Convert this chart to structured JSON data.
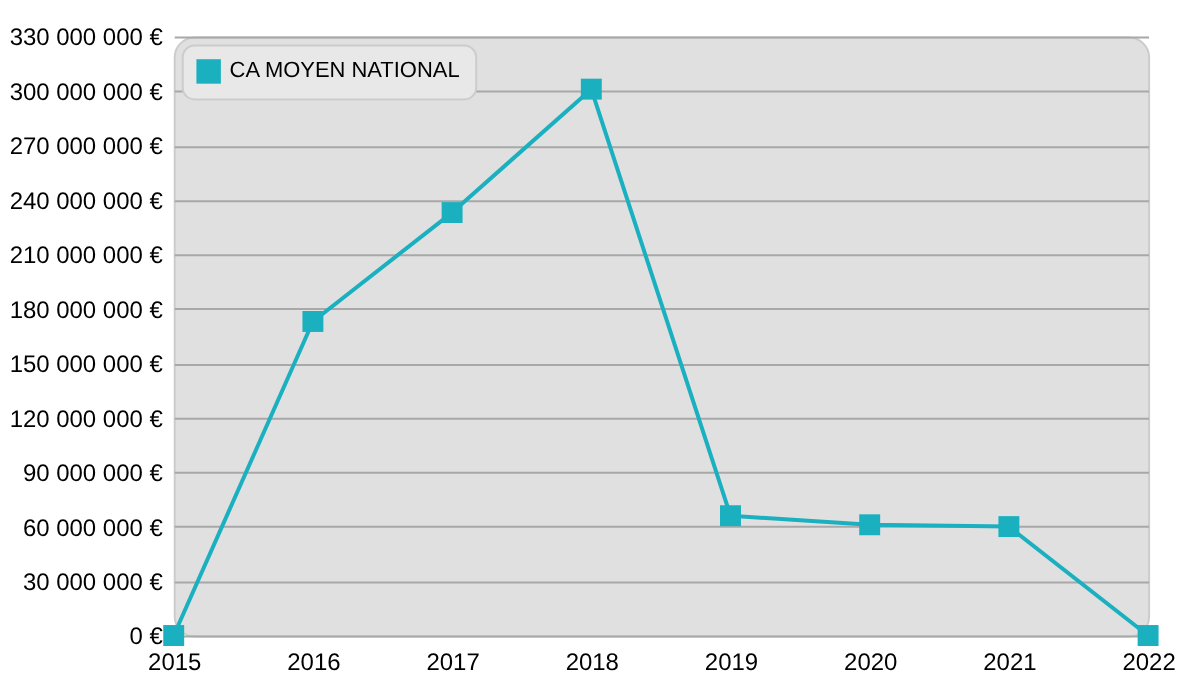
{
  "chart_data": {
    "type": "line",
    "x": [
      2015,
      2016,
      2017,
      2018,
      2019,
      2020,
      2021,
      2022
    ],
    "series": [
      {
        "name": "CA MOYEN NATIONAL",
        "color": "#1bb0c0",
        "values": [
          0,
          173000000,
          233000000,
          301000000,
          66000000,
          61000000,
          60000000,
          0
        ]
      }
    ],
    "xlim": [
      2015,
      2022
    ],
    "xticks": [
      2015,
      2016,
      2017,
      2018,
      2019,
      2020,
      2021,
      2022
    ],
    "ylim": [
      0,
      330000000
    ],
    "yticks": [
      {
        "value": 0,
        "label": "0 €"
      },
      {
        "value": 30000000,
        "label": "30 000 000 €"
      },
      {
        "value": 60000000,
        "label": "60 000 000 €"
      },
      {
        "value": 90000000,
        "label": "90 000 000 €"
      },
      {
        "value": 120000000,
        "label": "120 000 000 €"
      },
      {
        "value": 150000000,
        "label": "150 000 000 €"
      },
      {
        "value": 180000000,
        "label": "180 000 000 €"
      },
      {
        "value": 210000000,
        "label": "210 000 000 €"
      },
      {
        "value": 240000000,
        "label": "240 000 000 €"
      },
      {
        "value": 270000000,
        "label": "270 000 000 €"
      },
      {
        "value": 300000000,
        "label": "300 000 000 €"
      },
      {
        "value": 330000000,
        "label": "330 000 000 €"
      }
    ],
    "grid": "y",
    "legend": "top left",
    "marker": "square",
    "line_style": "solid"
  }
}
